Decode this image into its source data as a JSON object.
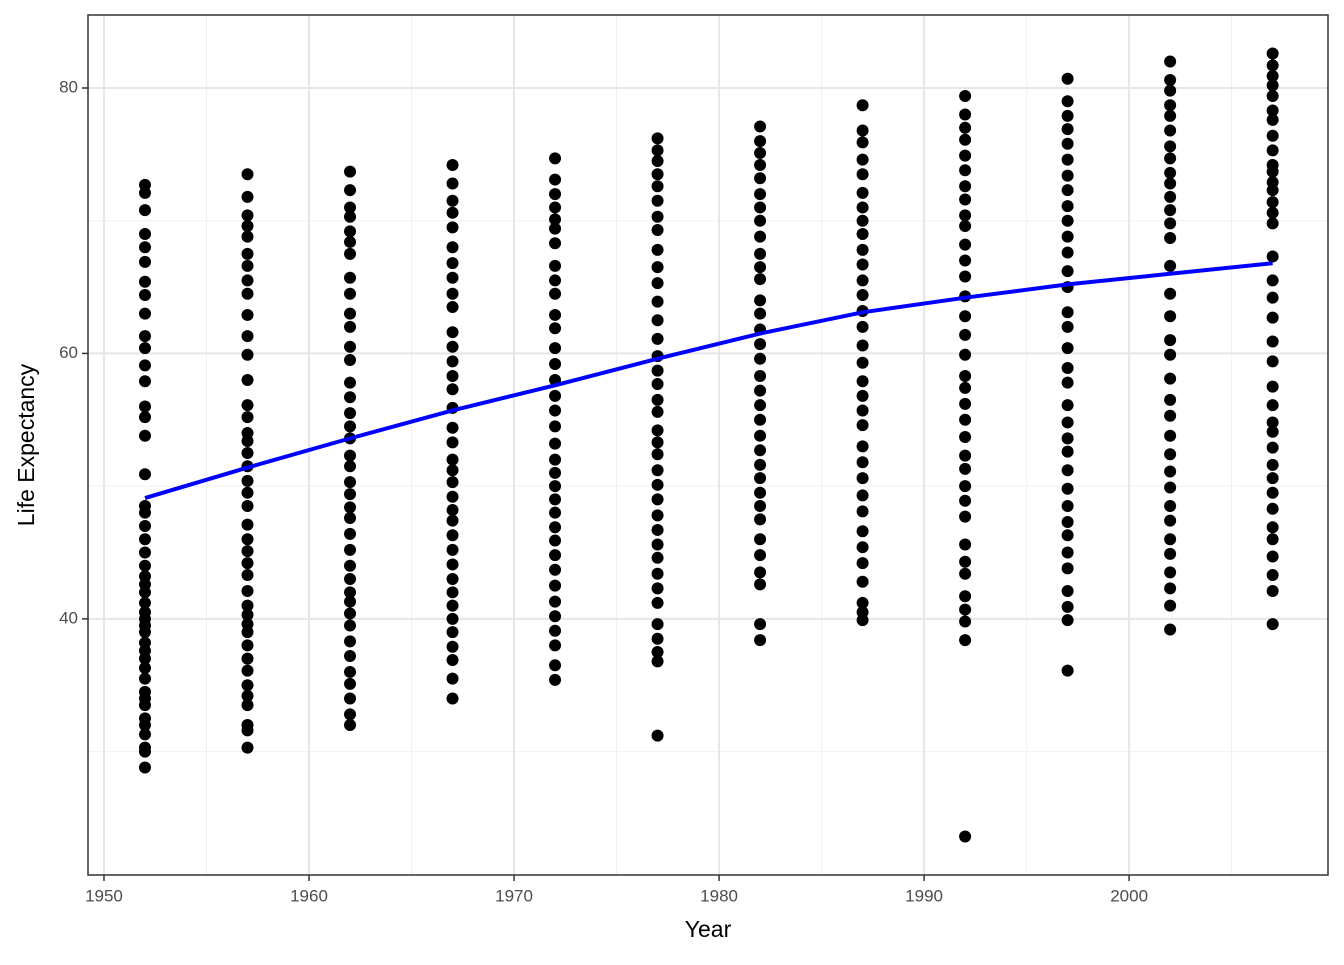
{
  "chart_data": {
    "type": "scatter",
    "x_label": "Year",
    "y_label": "Life Expectancy",
    "xlim": [
      1949.22,
      2009.7
    ],
    "ylim": [
      20.7,
      85.5
    ],
    "xticks": [
      1950,
      1960,
      1970,
      1980,
      1990,
      2000
    ],
    "yticks": [
      40,
      60,
      80
    ],
    "x_minor_grid": [
      1955,
      1965,
      1975,
      1985,
      1995,
      2005
    ],
    "y_minor_grid": [
      30,
      50,
      70
    ],
    "grid": true,
    "point_color": "#000000",
    "points": [
      {
        "x": 1952,
        "y": [
          28.8,
          30.0,
          30.3,
          31.3,
          32.0,
          32.5,
          33.5,
          34.0,
          34.5,
          35.5,
          36.3,
          37.0,
          37.6,
          38.2,
          39.0,
          39.5,
          40.0,
          40.5,
          41.2,
          42.0,
          42.6,
          43.2,
          44.0,
          45.0,
          46.0,
          47.0,
          48.0,
          48.5,
          50.9,
          53.8,
          55.2,
          56.0,
          57.9,
          59.1,
          60.4,
          61.3,
          63.0,
          64.4,
          65.4,
          66.9,
          68.0,
          69.0,
          70.8,
          72.1,
          72.7
        ]
      },
      {
        "x": 1957,
        "y": [
          30.3,
          31.6,
          32.0,
          33.5,
          34.2,
          35.0,
          36.1,
          37.0,
          38.0,
          39.0,
          39.6,
          40.3,
          41.0,
          42.1,
          43.3,
          44.2,
          45.1,
          46.0,
          47.1,
          48.5,
          49.5,
          50.4,
          51.5,
          52.5,
          53.4,
          54.0,
          55.2,
          56.1,
          58.0,
          59.9,
          61.3,
          62.9,
          64.5,
          65.5,
          66.6,
          67.5,
          68.8,
          69.6,
          70.4,
          71.8,
          73.5
        ]
      },
      {
        "x": 1962,
        "y": [
          32.0,
          32.8,
          34.0,
          35.1,
          36.0,
          37.2,
          38.3,
          39.5,
          40.4,
          41.3,
          42.0,
          43.0,
          44.0,
          45.2,
          46.4,
          47.6,
          48.4,
          49.4,
          50.3,
          51.5,
          52.3,
          53.6,
          54.5,
          55.5,
          56.7,
          57.8,
          59.5,
          60.5,
          62.0,
          63.0,
          64.5,
          65.7,
          67.5,
          68.4,
          69.2,
          70.3,
          71.0,
          72.3,
          73.7
        ]
      },
      {
        "x": 1967,
        "y": [
          34.0,
          35.5,
          36.9,
          37.9,
          39.0,
          40.0,
          41.0,
          42.0,
          43.0,
          44.1,
          45.2,
          46.3,
          47.4,
          48.2,
          49.2,
          50.3,
          51.2,
          52.0,
          53.3,
          54.4,
          55.9,
          57.3,
          58.3,
          59.4,
          60.5,
          61.6,
          63.5,
          64.5,
          65.7,
          66.8,
          68.0,
          69.5,
          70.6,
          71.5,
          72.8,
          74.2
        ]
      },
      {
        "x": 1972,
        "y": [
          35.4,
          36.5,
          38.0,
          39.1,
          40.2,
          41.3,
          42.5,
          43.7,
          44.8,
          45.9,
          46.9,
          48.0,
          49.0,
          50.0,
          51.0,
          52.0,
          53.2,
          54.5,
          55.7,
          56.8,
          58.0,
          59.2,
          60.4,
          61.9,
          62.9,
          64.5,
          65.5,
          66.6,
          68.3,
          69.4,
          70.1,
          71.0,
          72.0,
          73.1,
          74.7
        ]
      },
      {
        "x": 1977,
        "y": [
          31.2,
          36.8,
          37.5,
          38.5,
          39.6,
          41.2,
          42.3,
          43.4,
          44.6,
          45.6,
          46.7,
          47.8,
          49.0,
          50.1,
          51.2,
          52.4,
          53.3,
          54.2,
          55.6,
          56.5,
          57.7,
          58.7,
          59.8,
          61.1,
          62.5,
          63.9,
          65.3,
          66.5,
          67.8,
          69.3,
          70.3,
          71.5,
          72.6,
          73.5,
          74.5,
          75.3,
          76.2
        ]
      },
      {
        "x": 1982,
        "y": [
          38.4,
          39.6,
          42.6,
          43.5,
          44.8,
          46.0,
          47.5,
          48.5,
          49.5,
          50.6,
          51.6,
          52.7,
          53.8,
          55.0,
          56.1,
          57.2,
          58.3,
          59.6,
          60.7,
          61.8,
          63.0,
          64.0,
          65.6,
          66.5,
          67.5,
          68.8,
          70.0,
          71.0,
          72.0,
          73.2,
          74.2,
          75.1,
          76.0,
          77.1
        ]
      },
      {
        "x": 1987,
        "y": [
          39.9,
          40.5,
          41.2,
          42.8,
          44.2,
          45.4,
          46.6,
          48.1,
          49.3,
          50.6,
          51.8,
          53.0,
          54.6,
          55.7,
          56.8,
          57.9,
          59.3,
          60.6,
          62.0,
          63.2,
          64.4,
          65.5,
          66.7,
          67.8,
          69.0,
          70.0,
          71.0,
          72.1,
          73.5,
          74.6,
          75.9,
          76.8,
          78.7
        ]
      },
      {
        "x": 1992,
        "y": [
          23.6,
          38.4,
          39.8,
          40.7,
          41.7,
          43.4,
          44.3,
          45.6,
          47.7,
          48.9,
          50.0,
          51.3,
          52.3,
          53.7,
          55.0,
          56.2,
          57.4,
          58.3,
          59.9,
          61.4,
          62.8,
          64.3,
          65.8,
          67.0,
          68.2,
          69.6,
          70.4,
          71.6,
          72.6,
          73.8,
          74.9,
          76.1,
          77.0,
          78.0,
          79.4
        ]
      },
      {
        "x": 1997,
        "y": [
          36.1,
          39.9,
          40.9,
          42.1,
          43.8,
          45.0,
          46.3,
          47.3,
          48.5,
          49.8,
          51.2,
          52.6,
          53.6,
          54.8,
          56.1,
          57.8,
          58.9,
          60.4,
          62.0,
          63.1,
          65.0,
          66.2,
          67.6,
          68.8,
          70.0,
          71.1,
          72.3,
          73.4,
          74.6,
          75.8,
          76.9,
          77.9,
          79.0,
          80.7
        ]
      },
      {
        "x": 2002,
        "y": [
          39.2,
          41.0,
          42.3,
          43.5,
          44.9,
          46.0,
          47.4,
          48.5,
          49.9,
          51.1,
          52.4,
          53.8,
          55.3,
          56.5,
          58.1,
          59.9,
          61.0,
          62.8,
          64.5,
          66.6,
          68.7,
          69.8,
          70.8,
          71.8,
          72.8,
          73.6,
          74.7,
          75.6,
          76.8,
          77.9,
          78.7,
          79.8,
          80.6,
          82.0
        ]
      },
      {
        "x": 2007,
        "y": [
          39.6,
          42.1,
          43.3,
          44.7,
          46.0,
          46.9,
          48.3,
          49.5,
          50.6,
          51.6,
          52.9,
          54.1,
          54.8,
          56.1,
          57.5,
          59.4,
          60.9,
          62.7,
          64.2,
          65.5,
          67.3,
          69.8,
          70.6,
          71.4,
          72.3,
          72.9,
          73.7,
          74.2,
          75.3,
          76.4,
          77.6,
          78.3,
          79.4,
          80.2,
          80.9,
          81.7,
          82.6
        ]
      }
    ],
    "smooth": {
      "color": "#0000ff",
      "x": [
        1952,
        1957,
        1962,
        1967,
        1972,
        1977,
        1982,
        1987,
        1992,
        1997,
        2002,
        2007
      ],
      "y": [
        49.1,
        51.4,
        53.6,
        55.7,
        57.6,
        59.6,
        61.5,
        63.1,
        64.2,
        65.2,
        66.0,
        66.8
      ]
    }
  }
}
